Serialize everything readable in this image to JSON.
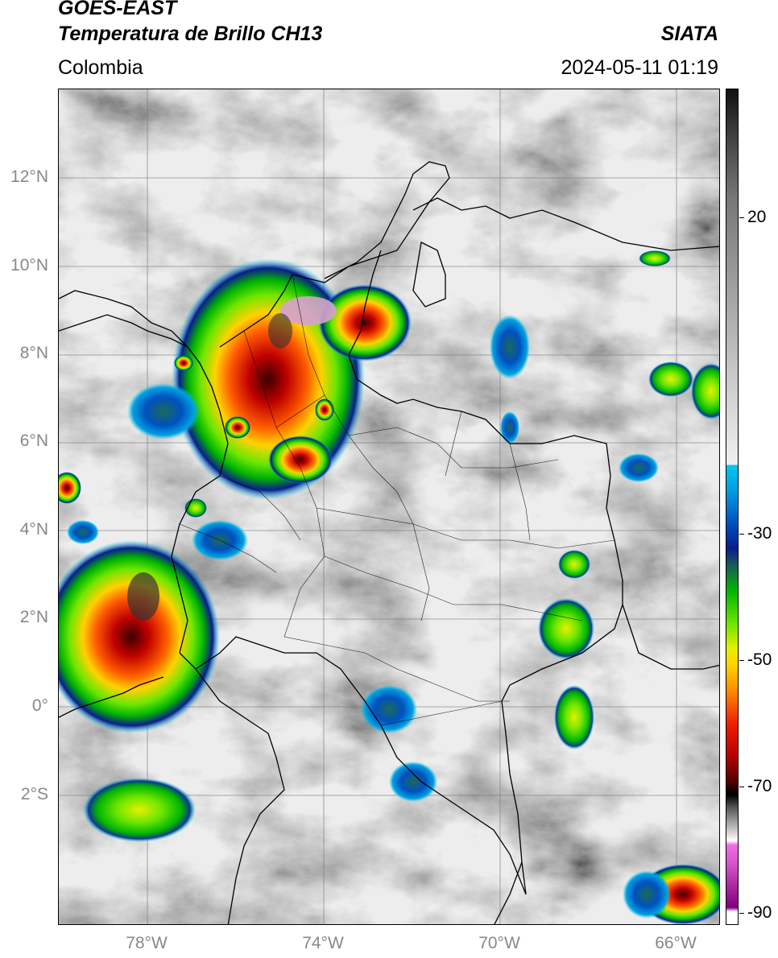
{
  "header": {
    "satellite": "GOES-EAST",
    "product": "Temperatura de Brillo CH13",
    "region": "Colombia",
    "organization": "SIATA",
    "timestamp": "2024-05-11 01:19"
  },
  "map": {
    "lat_range": [
      -5,
      14
    ],
    "lon_range": [
      -80,
      -65
    ],
    "lat_ticks": [
      "12°N",
      "10°N",
      "8°N",
      "6°N",
      "4°N",
      "2°N",
      "0°",
      "2°S"
    ],
    "lon_ticks": [
      "78°W",
      "74°W",
      "70°W",
      "66°W"
    ]
  },
  "colorbar": {
    "labels": [
      "20",
      "-30",
      "-50",
      "-70",
      "-90"
    ],
    "range": [
      -92,
      38
    ]
  }
}
